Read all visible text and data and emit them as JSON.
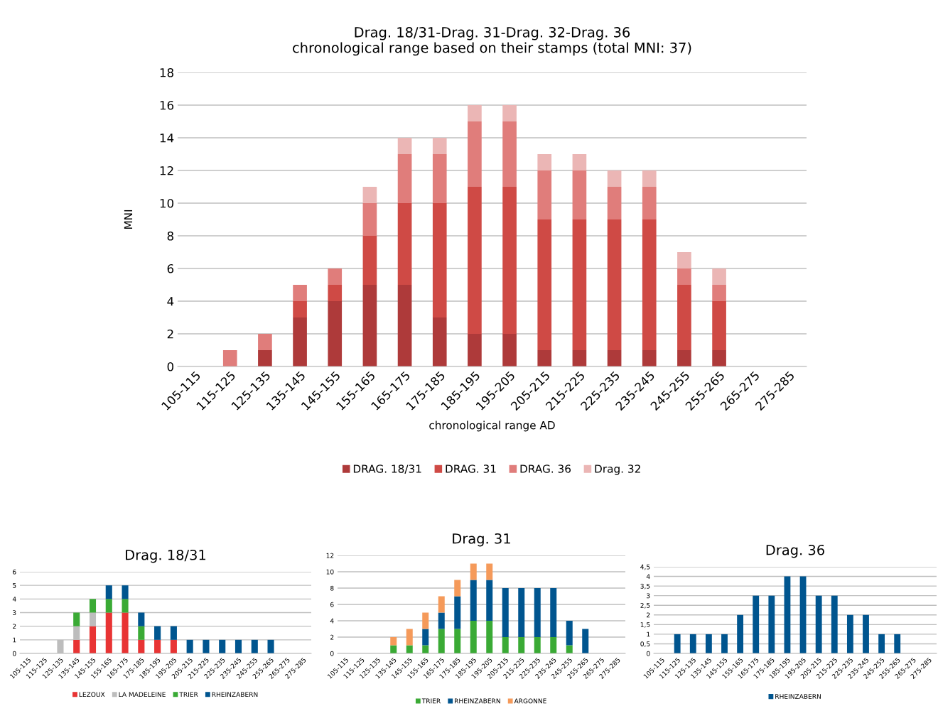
{
  "chart_data": [
    {
      "type": "bar",
      "stacked": true,
      "title": "Drag. 18/31-Drag. 31-Drag. 32-Drag. 36\nchronological range based on their stamps (total MNI: 37)",
      "xlabel": "chronological range AD",
      "ylabel": "MNI",
      "categories": [
        "105-115",
        "115-125",
        "125-135",
        "135-145",
        "145-155",
        "155-165",
        "165-175",
        "175-185",
        "185-195",
        "195-205",
        "205-215",
        "215-225",
        "225-235",
        "235-245",
        "245-255",
        "255-265",
        "265-275",
        "275-285"
      ],
      "series": [
        {
          "name": "DRAG. 18/31",
          "color": "#ae3a3a",
          "values": [
            null,
            null,
            1,
            3,
            4,
            5,
            5,
            3,
            2,
            2,
            1,
            1,
            1,
            1,
            1,
            1,
            null,
            null
          ]
        },
        {
          "name": "DRAG. 31",
          "color": "#cf4a45",
          "values": [
            null,
            null,
            null,
            1,
            1,
            3,
            5,
            7,
            9,
            9,
            8,
            8,
            8,
            8,
            4,
            3,
            null,
            null
          ]
        },
        {
          "name": "DRAG. 36",
          "color": "#e07d7b",
          "values": [
            null,
            1,
            1,
            1,
            1,
            2,
            3,
            3,
            4,
            4,
            3,
            3,
            2,
            2,
            1,
            1,
            null,
            null
          ]
        },
        {
          "name": "Drag. 32",
          "color": "#ebb6b5",
          "values": [
            null,
            null,
            null,
            null,
            null,
            1,
            1,
            1,
            1,
            1,
            1,
            1,
            1,
            1,
            1,
            1,
            null,
            null
          ]
        }
      ],
      "ylim": [
        0,
        18
      ],
      "yticks": [
        0,
        2,
        4,
        6,
        8,
        10,
        12,
        14,
        16,
        18
      ],
      "grid": "y",
      "legend": "bottom"
    },
    {
      "type": "bar",
      "stacked": true,
      "title": "Drag. 18/31",
      "categories": [
        "105-115",
        "115-125",
        "125-135",
        "135-145",
        "145-155",
        "155-165",
        "165-175",
        "175-185",
        "185-195",
        "195-205",
        "205-215",
        "215-225",
        "225-235",
        "235-245",
        "245-255",
        "255-265",
        "265-275",
        "275-285"
      ],
      "series": [
        {
          "name": "LEZOUX",
          "color": "#e83434",
          "values": [
            null,
            null,
            null,
            1,
            2,
            3,
            3,
            1,
            1,
            1,
            null,
            null,
            null,
            null,
            null,
            null,
            null,
            null
          ]
        },
        {
          "name": "LA MADELEINE",
          "color": "#bdbdbd",
          "values": [
            null,
            null,
            1,
            1,
            1,
            null,
            null,
            null,
            null,
            null,
            null,
            null,
            null,
            null,
            null,
            null,
            null,
            null
          ]
        },
        {
          "name": "TRIER",
          "color": "#3aaa35",
          "values": [
            null,
            null,
            null,
            1,
            1,
            1,
            1,
            1,
            null,
            null,
            null,
            null,
            null,
            null,
            null,
            null,
            null,
            null
          ]
        },
        {
          "name": "RHEINZABERN",
          "color": "#00558f",
          "values": [
            null,
            null,
            null,
            null,
            null,
            1,
            1,
            1,
            1,
            1,
            1,
            1,
            1,
            1,
            1,
            1,
            null,
            null
          ]
        }
      ],
      "ylim": [
        0,
        6
      ],
      "yticks": [
        0,
        1,
        2,
        3,
        4,
        5,
        6
      ],
      "grid": "y",
      "legend": "bottom"
    },
    {
      "type": "bar",
      "stacked": true,
      "title": "Drag. 31",
      "categories": [
        "105-115",
        "115-125",
        "125-135",
        "135-145",
        "145-155",
        "155-165",
        "165-175",
        "175-185",
        "185-195",
        "195-205",
        "205-215",
        "215-225",
        "225-235",
        "235-245",
        "245-255",
        "255-265",
        "265-275",
        "275-285"
      ],
      "series": [
        {
          "name": "TRIER",
          "color": "#3aaa35",
          "values": [
            null,
            null,
            null,
            1,
            1,
            1,
            3,
            3,
            4,
            4,
            2,
            2,
            2,
            2,
            1,
            null,
            null,
            null
          ]
        },
        {
          "name": "RHEINZABERN",
          "color": "#00558f",
          "values": [
            null,
            null,
            null,
            null,
            null,
            2,
            2,
            4,
            5,
            5,
            6,
            6,
            6,
            6,
            3,
            3,
            null,
            null
          ]
        },
        {
          "name": "ARGONNE",
          "color": "#f59a5a",
          "values": [
            null,
            null,
            null,
            1,
            2,
            2,
            2,
            2,
            2,
            2,
            null,
            null,
            null,
            null,
            null,
            null,
            null,
            null
          ]
        }
      ],
      "ylim": [
        0,
        12
      ],
      "yticks": [
        0,
        2,
        4,
        6,
        8,
        10,
        12
      ],
      "grid": "y",
      "legend": "bottom"
    },
    {
      "type": "bar",
      "stacked": true,
      "title": "Drag. 36",
      "categories": [
        "105-115",
        "115-125",
        "125-135",
        "135-145",
        "145-155",
        "155-165",
        "165-175",
        "175-185",
        "185-195",
        "195-205",
        "205-215",
        "215-225",
        "225-235",
        "235-245",
        "245-255",
        "255-265",
        "265-275",
        "275-285"
      ],
      "series": [
        {
          "name": "RHEINZABERN",
          "color": "#00558f",
          "values": [
            null,
            1,
            1,
            1,
            1,
            2,
            3,
            3,
            4,
            4,
            3,
            3,
            2,
            2,
            1,
            1,
            null,
            null
          ]
        }
      ],
      "ylim": [
        0,
        4.5
      ],
      "yticks": [
        0,
        {
          "value": 0.5,
          "label": "0,5"
        },
        1,
        {
          "value": 1.5,
          "label": "1,5"
        },
        2,
        {
          "value": 2.5,
          "label": "2,5"
        },
        3,
        {
          "value": 3.5,
          "label": "3,5"
        },
        4,
        {
          "value": 4.5,
          "label": "4,5"
        }
      ],
      "grid": "y",
      "legend": "bottom"
    }
  ]
}
